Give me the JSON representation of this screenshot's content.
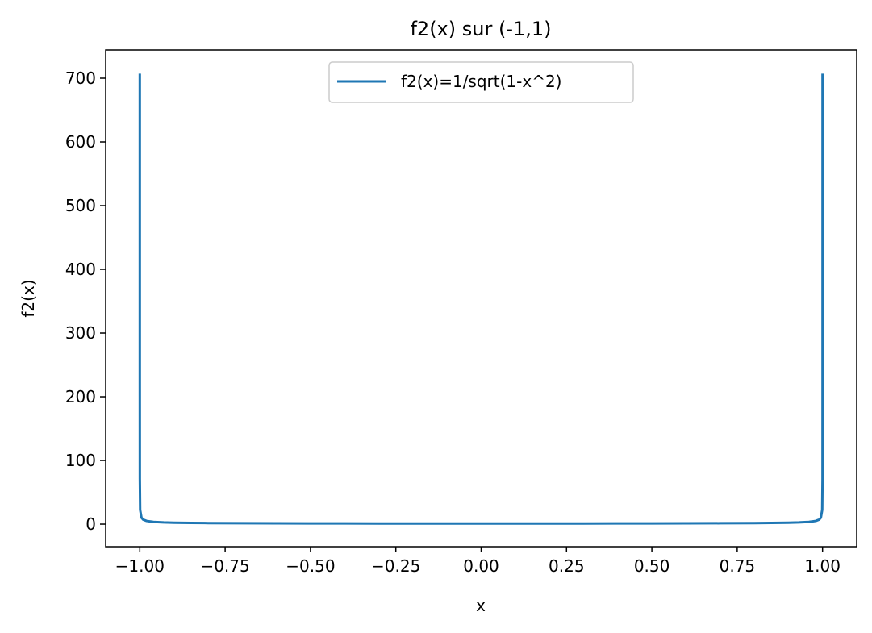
{
  "chart_data": {
    "type": "line",
    "title": "f2(x) sur (-1,1)",
    "xlabel": "x",
    "ylabel": "f2(x)",
    "xlim": [
      -1.1,
      1.1
    ],
    "ylim": [
      -35.4,
      744.3
    ],
    "xticks": [
      -1.0,
      -0.75,
      -0.5,
      -0.25,
      0.0,
      0.25,
      0.5,
      0.75,
      1.0
    ],
    "xtick_labels": [
      "−1.00",
      "−0.75",
      "−0.50",
      "−0.25",
      "0.00",
      "0.25",
      "0.50",
      "0.75",
      "1.00"
    ],
    "yticks": [
      0,
      100,
      200,
      300,
      400,
      500,
      600,
      700
    ],
    "ytick_labels": [
      "0",
      "100",
      "200",
      "300",
      "400",
      "500",
      "600",
      "700"
    ],
    "grid": false,
    "legend_position": "upper center",
    "series": [
      {
        "name": "f2(x)=1/sqrt(1-x^2)",
        "color": "#1f77b4",
        "x": [
          -0.999999,
          -0.99999,
          -0.9999,
          -0.999,
          -0.995,
          -0.99,
          -0.98,
          -0.96,
          -0.93,
          -0.9,
          -0.85,
          -0.8,
          -0.7,
          -0.6,
          -0.5,
          -0.4,
          -0.3,
          -0.2,
          -0.1,
          0.0,
          0.1,
          0.2,
          0.3,
          0.4,
          0.5,
          0.6,
          0.7,
          0.8,
          0.85,
          0.9,
          0.93,
          0.96,
          0.98,
          0.99,
          0.995,
          0.999,
          0.9999,
          0.99999,
          0.999999
        ],
        "y": [
          707.1,
          223.6,
          70.71,
          22.37,
          10.01,
          7.09,
          5.03,
          3.57,
          2.72,
          2.29,
          1.9,
          1.67,
          1.4,
          1.25,
          1.15,
          1.09,
          1.05,
          1.02,
          1.01,
          1.0,
          1.01,
          1.02,
          1.05,
          1.09,
          1.15,
          1.25,
          1.4,
          1.67,
          1.9,
          2.29,
          2.72,
          3.57,
          5.03,
          7.09,
          10.01,
          22.37,
          70.71,
          223.6,
          707.1
        ]
      }
    ]
  }
}
